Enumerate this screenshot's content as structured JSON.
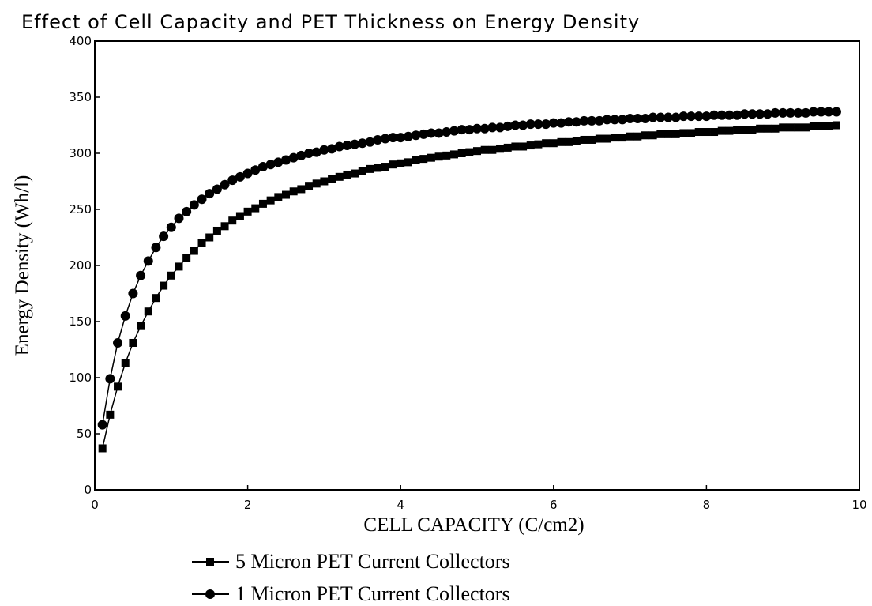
{
  "chart_data": {
    "type": "line",
    "title": "Effect of Cell Capacity and PET Thickness on Energy Density",
    "x_label": "CELL CAPACITY (C/cm2)",
    "y_label": "Energy Density (Wh/l)",
    "xlim": [
      0,
      10
    ],
    "xticks": [
      0,
      2,
      4,
      6,
      8,
      10
    ],
    "ylim": [
      0,
      400
    ],
    "yticks": [
      0,
      50,
      100,
      150,
      200,
      250,
      300,
      350,
      400
    ],
    "grid": false,
    "legend": "bottom",
    "x": [
      0.1,
      0.2,
      0.3,
      0.4,
      0.5,
      0.6,
      0.7,
      0.8,
      0.9,
      1.0,
      1.1,
      1.2,
      1.3,
      1.4,
      1.5,
      1.6,
      1.7,
      1.8,
      1.9,
      2.0,
      2.1,
      2.2,
      2.3,
      2.4,
      2.5,
      2.6,
      2.7,
      2.8,
      2.9,
      3.0,
      3.1,
      3.2,
      3.3,
      3.4,
      3.5,
      3.6,
      3.7,
      3.8,
      3.9,
      4.0,
      4.1,
      4.2,
      4.3,
      4.4,
      4.5,
      4.6,
      4.7,
      4.8,
      4.9,
      5.0,
      5.1,
      5.2,
      5.3,
      5.4,
      5.5,
      5.6,
      5.7,
      5.8,
      5.9,
      6.0,
      6.1,
      6.2,
      6.3,
      6.4,
      6.5,
      6.6,
      6.7,
      6.8,
      6.9,
      7.0,
      7.1,
      7.2,
      7.3,
      7.4,
      7.5,
      7.6,
      7.7,
      7.8,
      7.9,
      8.0,
      8.1,
      8.2,
      8.3,
      8.4,
      8.5,
      8.6,
      8.7,
      8.8,
      8.9,
      9.0,
      9.1,
      9.2,
      9.3,
      9.4,
      9.5,
      9.6,
      9.7
    ],
    "series": [
      {
        "name": "5 Micron PET Current Collectors",
        "color": "#000000",
        "marker": "square",
        "values": [
          37,
          67,
          92,
          113,
          131,
          146,
          159,
          171,
          182,
          191,
          199,
          207,
          213,
          220,
          225,
          231,
          235,
          240,
          244,
          248,
          251,
          255,
          258,
          261,
          263,
          266,
          268,
          271,
          273,
          275,
          277,
          279,
          281,
          282,
          284,
          286,
          287,
          288,
          290,
          291,
          292,
          294,
          295,
          296,
          297,
          298,
          299,
          300,
          301,
          302,
          303,
          303,
          304,
          305,
          306,
          306,
          307,
          308,
          309,
          309,
          310,
          310,
          311,
          312,
          312,
          313,
          313,
          314,
          314,
          315,
          315,
          316,
          316,
          317,
          317,
          317,
          318,
          318,
          319,
          319,
          319,
          320,
          320,
          321,
          321,
          321,
          322,
          322,
          322,
          323,
          323,
          323,
          323,
          324,
          324,
          324,
          325
        ]
      },
      {
        "name": "1 Micron PET Current Collectors",
        "color": "#000000",
        "marker": "circle",
        "values": [
          58,
          99,
          131,
          155,
          175,
          191,
          204,
          216,
          226,
          234,
          242,
          248,
          254,
          259,
          264,
          268,
          272,
          276,
          279,
          282,
          285,
          288,
          290,
          292,
          294,
          296,
          298,
          300,
          301,
          303,
          304,
          306,
          307,
          308,
          309,
          310,
          312,
          313,
          314,
          314,
          315,
          316,
          317,
          318,
          318,
          319,
          320,
          321,
          321,
          322,
          322,
          323,
          323,
          324,
          325,
          325,
          326,
          326,
          326,
          327,
          327,
          328,
          328,
          329,
          329,
          329,
          330,
          330,
          330,
          331,
          331,
          331,
          332,
          332,
          332,
          332,
          333,
          333,
          333,
          333,
          334,
          334,
          334,
          334,
          335,
          335,
          335,
          335,
          336,
          336,
          336,
          336,
          336,
          337,
          337,
          337,
          337
        ]
      }
    ]
  }
}
